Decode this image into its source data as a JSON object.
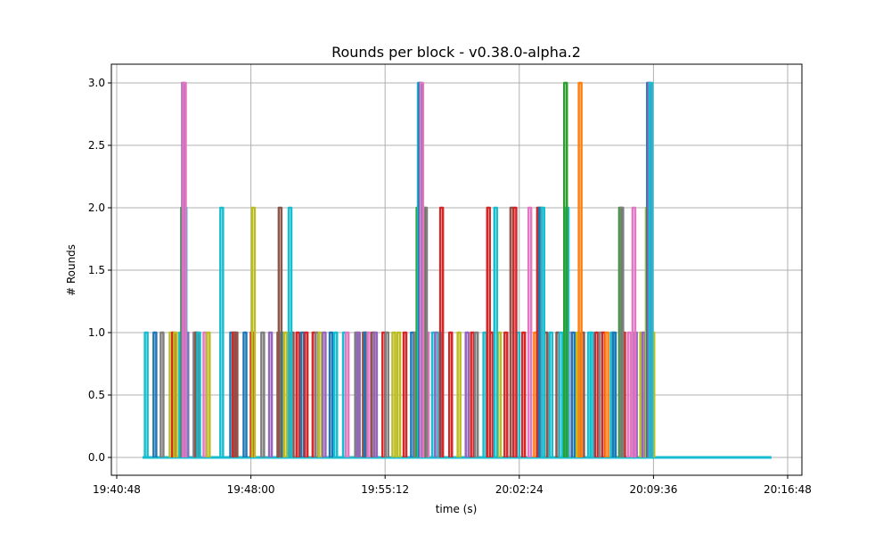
{
  "chart_data": {
    "type": "line",
    "title": "Rounds per block  -  v0.38.0-alpha.2",
    "xlabel": "time (s)",
    "ylabel": "# Rounds",
    "ylim": [
      -0.15,
      3.15
    ],
    "xlim_seconds_from_start": [
      -18,
      2180
    ],
    "x_start_time": "19:40:48",
    "grid": true,
    "legend": "none",
    "yticks": [
      {
        "value": 0.0,
        "label": "0.0"
      },
      {
        "value": 0.5,
        "label": "0.5"
      },
      {
        "value": 1.0,
        "label": "1.0"
      },
      {
        "value": 1.5,
        "label": "1.5"
      },
      {
        "value": 2.0,
        "label": "2.0"
      },
      {
        "value": 2.5,
        "label": "2.5"
      },
      {
        "value": 3.0,
        "label": "3.0"
      }
    ],
    "xticks": [
      {
        "value": 0,
        "label": "19:40:48"
      },
      {
        "value": 432,
        "label": "19:48:00"
      },
      {
        "value": 864,
        "label": "19:55:12"
      },
      {
        "value": 1296,
        "label": "20:02:24"
      },
      {
        "value": 1728,
        "label": "20:09:36"
      },
      {
        "value": 2160,
        "label": "20:16:48"
      }
    ],
    "baseline": {
      "start": 83,
      "end": 2108,
      "value": 0
    },
    "series_note": "Many per-node series (tab10 colors); each block plotted as a spike from 0 to its round count",
    "spikes": [
      {
        "t": 95,
        "v": 1,
        "color": "#17becf"
      },
      {
        "t": 123,
        "v": 1,
        "color": "#1f77b4"
      },
      {
        "t": 146,
        "v": 1,
        "color": "#7f7f7f"
      },
      {
        "t": 175,
        "v": 1,
        "color": "#bcbd22"
      },
      {
        "t": 183,
        "v": 1,
        "color": "#d62728"
      },
      {
        "t": 189,
        "v": 1,
        "color": "#bcbd22"
      },
      {
        "t": 206,
        "v": 1,
        "color": "#17becf"
      },
      {
        "t": 212,
        "v": 2,
        "color": "#2ca02c"
      },
      {
        "t": 215,
        "v": 3,
        "color": "#9467bd"
      },
      {
        "t": 218,
        "v": 3,
        "color": "#e377c2"
      },
      {
        "t": 220,
        "v": 2,
        "color": "#17becf"
      },
      {
        "t": 226,
        "v": 1,
        "color": "#9467bd"
      },
      {
        "t": 252,
        "v": 1,
        "color": "#7f7f7f"
      },
      {
        "t": 258,
        "v": 1,
        "color": "#8c564b"
      },
      {
        "t": 264,
        "v": 1,
        "color": "#17becf"
      },
      {
        "t": 284,
        "v": 1,
        "color": "#e377c2"
      },
      {
        "t": 295,
        "v": 1,
        "color": "#bcbd22"
      },
      {
        "t": 338,
        "v": 2,
        "color": "#17becf"
      },
      {
        "t": 370,
        "v": 1,
        "color": "#1f77b4"
      },
      {
        "t": 378,
        "v": 1,
        "color": "#d62728"
      },
      {
        "t": 384,
        "v": 1,
        "color": "#8c564b"
      },
      {
        "t": 413,
        "v": 1,
        "color": "#1f77b4"
      },
      {
        "t": 436,
        "v": 1,
        "color": "#d62728"
      },
      {
        "t": 440,
        "v": 2,
        "color": "#bcbd22"
      },
      {
        "t": 470,
        "v": 1,
        "color": "#7f7f7f"
      },
      {
        "t": 495,
        "v": 1,
        "color": "#9467bd"
      },
      {
        "t": 522,
        "v": 1,
        "color": "#8c564b"
      },
      {
        "t": 526,
        "v": 2,
        "color": "#8c564b"
      },
      {
        "t": 532,
        "v": 1,
        "color": "#17becf"
      },
      {
        "t": 544,
        "v": 1,
        "color": "#bcbd22"
      },
      {
        "t": 558,
        "v": 2,
        "color": "#17becf"
      },
      {
        "t": 565,
        "v": 1,
        "color": "#8c564b"
      },
      {
        "t": 583,
        "v": 1,
        "color": "#d62728"
      },
      {
        "t": 598,
        "v": 1,
        "color": "#1f77b4"
      },
      {
        "t": 610,
        "v": 1,
        "color": "#d62728"
      },
      {
        "t": 635,
        "v": 1,
        "color": "#d62728"
      },
      {
        "t": 645,
        "v": 1,
        "color": "#7f7f7f"
      },
      {
        "t": 655,
        "v": 1,
        "color": "#bcbd22"
      },
      {
        "t": 668,
        "v": 1,
        "color": "#9467bd"
      },
      {
        "t": 690,
        "v": 1,
        "color": "#1f77b4"
      },
      {
        "t": 705,
        "v": 1,
        "color": "#17becf"
      },
      {
        "t": 733,
        "v": 1,
        "color": "#17becf"
      },
      {
        "t": 742,
        "v": 1,
        "color": "#e377c2"
      },
      {
        "t": 772,
        "v": 1,
        "color": "#7f7f7f"
      },
      {
        "t": 778,
        "v": 1,
        "color": "#9467bd"
      },
      {
        "t": 797,
        "v": 1,
        "color": "#8c564b"
      },
      {
        "t": 803,
        "v": 1,
        "color": "#1f77b4"
      },
      {
        "t": 812,
        "v": 1,
        "color": "#e377c2"
      },
      {
        "t": 825,
        "v": 1,
        "color": "#8c564b"
      },
      {
        "t": 833,
        "v": 1,
        "color": "#9467bd"
      },
      {
        "t": 860,
        "v": 1,
        "color": "#d62728"
      },
      {
        "t": 870,
        "v": 1,
        "color": "#7f7f7f"
      },
      {
        "t": 892,
        "v": 1,
        "color": "#bcbd22"
      },
      {
        "t": 908,
        "v": 1,
        "color": "#bcbd22"
      },
      {
        "t": 928,
        "v": 1,
        "color": "#d62728"
      },
      {
        "t": 952,
        "v": 1,
        "color": "#1f77b4"
      },
      {
        "t": 963,
        "v": 1,
        "color": "#7f7f7f"
      },
      {
        "t": 970,
        "v": 2,
        "color": "#2ca02c"
      },
      {
        "t": 974,
        "v": 3,
        "color": "#17becf"
      },
      {
        "t": 978,
        "v": 3,
        "color": "#1f77b4"
      },
      {
        "t": 982,
        "v": 3,
        "color": "#e377c2"
      },
      {
        "t": 988,
        "v": 2,
        "color": "#8c564b"
      },
      {
        "t": 994,
        "v": 2,
        "color": "#7f7f7f"
      },
      {
        "t": 1000,
        "v": 1,
        "color": "#e377c2"
      },
      {
        "t": 1020,
        "v": 1,
        "color": "#17becf"
      },
      {
        "t": 1030,
        "v": 1,
        "color": "#9467bd"
      },
      {
        "t": 1040,
        "v": 1,
        "color": "#17becf"
      },
      {
        "t": 1046,
        "v": 2,
        "color": "#d62728"
      },
      {
        "t": 1075,
        "v": 1,
        "color": "#d62728"
      },
      {
        "t": 1102,
        "v": 1,
        "color": "#bcbd22"
      },
      {
        "t": 1128,
        "v": 1,
        "color": "#9467bd"
      },
      {
        "t": 1145,
        "v": 1,
        "color": "#d62728"
      },
      {
        "t": 1158,
        "v": 1,
        "color": "#7f7f7f"
      },
      {
        "t": 1185,
        "v": 1,
        "color": "#17becf"
      },
      {
        "t": 1197,
        "v": 2,
        "color": "#d62728"
      },
      {
        "t": 1207,
        "v": 1,
        "color": "#d62728"
      },
      {
        "t": 1220,
        "v": 2,
        "color": "#17becf"
      },
      {
        "t": 1232,
        "v": 1,
        "color": "#bcbd22"
      },
      {
        "t": 1253,
        "v": 1,
        "color": "#d62728"
      },
      {
        "t": 1272,
        "v": 2,
        "color": "#8c564b"
      },
      {
        "t": 1282,
        "v": 2,
        "color": "#d62728"
      },
      {
        "t": 1292,
        "v": 1,
        "color": "#17becf"
      },
      {
        "t": 1310,
        "v": 1,
        "color": "#d62728"
      },
      {
        "t": 1330,
        "v": 2,
        "color": "#e377c2"
      },
      {
        "t": 1348,
        "v": 1,
        "color": "#ff7f0e"
      },
      {
        "t": 1358,
        "v": 2,
        "color": "#d62728"
      },
      {
        "t": 1364,
        "v": 2,
        "color": "#1f77b4"
      },
      {
        "t": 1372,
        "v": 2,
        "color": "#17becf"
      },
      {
        "t": 1382,
        "v": 1,
        "color": "#8c564b"
      },
      {
        "t": 1398,
        "v": 1,
        "color": "#17becf"
      },
      {
        "t": 1420,
        "v": 1,
        "color": "#8c564b"
      },
      {
        "t": 1430,
        "v": 1,
        "color": "#17becf"
      },
      {
        "t": 1445,
        "v": 3,
        "color": "#2ca02c"
      },
      {
        "t": 1450,
        "v": 2,
        "color": "#17becf"
      },
      {
        "t": 1460,
        "v": 1,
        "color": "#e377c2"
      },
      {
        "t": 1470,
        "v": 1,
        "color": "#1f77b4"
      },
      {
        "t": 1485,
        "v": 1,
        "color": "#bcbd22"
      },
      {
        "t": 1492,
        "v": 3,
        "color": "#ff7f0e"
      },
      {
        "t": 1500,
        "v": 1,
        "color": "#8c564b"
      },
      {
        "t": 1522,
        "v": 1,
        "color": "#17becf"
      },
      {
        "t": 1530,
        "v": 1,
        "color": "#17becf"
      },
      {
        "t": 1545,
        "v": 1,
        "color": "#d62728"
      },
      {
        "t": 1558,
        "v": 1,
        "color": "#7f7f7f"
      },
      {
        "t": 1568,
        "v": 1,
        "color": "#d62728"
      },
      {
        "t": 1578,
        "v": 1,
        "color": "#ff7f0e"
      },
      {
        "t": 1595,
        "v": 1,
        "color": "#17becf"
      },
      {
        "t": 1602,
        "v": 1,
        "color": "#1f77b4"
      },
      {
        "t": 1622,
        "v": 2,
        "color": "#2ca02c"
      },
      {
        "t": 1626,
        "v": 2,
        "color": "#7f7f7f"
      },
      {
        "t": 1632,
        "v": 1,
        "color": "#d62728"
      },
      {
        "t": 1650,
        "v": 1,
        "color": "#e377c2"
      },
      {
        "t": 1665,
        "v": 2,
        "color": "#e377c2"
      },
      {
        "t": 1670,
        "v": 1,
        "color": "#9467bd"
      },
      {
        "t": 1690,
        "v": 1,
        "color": "#bcbd22"
      },
      {
        "t": 1697,
        "v": 1,
        "color": "#9467bd"
      },
      {
        "t": 1708,
        "v": 2,
        "color": "#bcbd22"
      },
      {
        "t": 1712,
        "v": 3,
        "color": "#1f77b4"
      },
      {
        "t": 1716,
        "v": 3,
        "color": "#9467bd"
      },
      {
        "t": 1720,
        "v": 3,
        "color": "#17becf"
      },
      {
        "t": 1726,
        "v": 1,
        "color": "#bcbd22"
      }
    ]
  }
}
